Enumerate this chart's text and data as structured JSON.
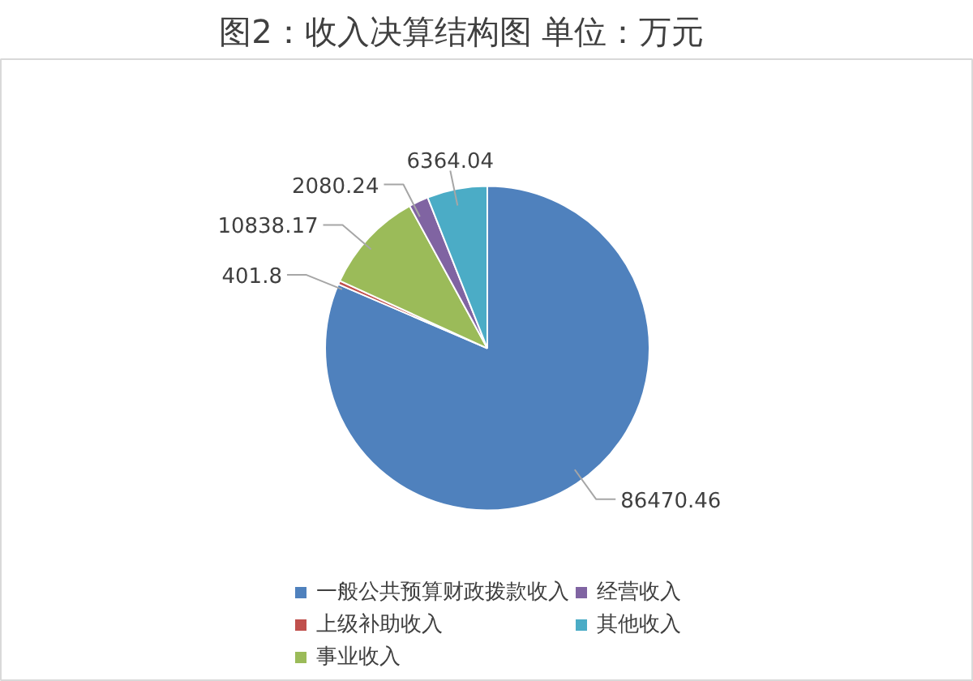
{
  "chart_data": {
    "type": "pie",
    "title": "图2：收入决算结构图      单位：万元",
    "categories": [
      "一般公共预算财政拨款收入",
      "上级补助收入",
      "事业收入",
      "经营收入",
      "其他收入"
    ],
    "values": [
      86470.46,
      401.8,
      10838.17,
      2080.24,
      6364.04
    ],
    "colors": [
      "#4f81bd",
      "#c0504d",
      "#9bbb59",
      "#8064a2",
      "#4bacc6"
    ],
    "data_labels": true,
    "legend": "bottom"
  }
}
